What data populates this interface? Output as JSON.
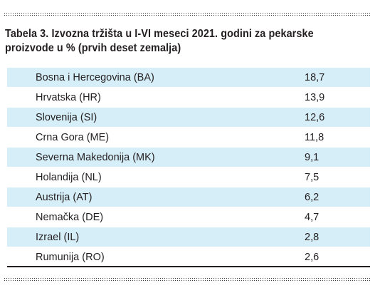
{
  "caption": "Tabela 3. Izvozna tržišta u I-VI meseci 2021. godini za pekarske proizvode u % (prvih deset zemalja)",
  "rows": [
    {
      "country": "Bosna i Hercegovina (BA)",
      "value": "18,7"
    },
    {
      "country": "Hrvatska (HR)",
      "value": "13,9"
    },
    {
      "country": "Slovenija (SI)",
      "value": "12,6"
    },
    {
      "country": "Crna Gora (ME)",
      "value": "11,8"
    },
    {
      "country": "Severna Makedonija (MK)",
      "value": "9,1"
    },
    {
      "country": "Holandija (NL)",
      "value": "7,5"
    },
    {
      "country": "Austrija (AT)",
      "value": "6,2"
    },
    {
      "country": "Nemačka (DE)",
      "value": "4,7"
    },
    {
      "country": "Izrael (IL)",
      "value": "2,8"
    },
    {
      "country": "Rumunija (RO)",
      "value": "2,6"
    }
  ],
  "colors": {
    "row_shade": "#d6eef8",
    "text": "#231f20"
  }
}
